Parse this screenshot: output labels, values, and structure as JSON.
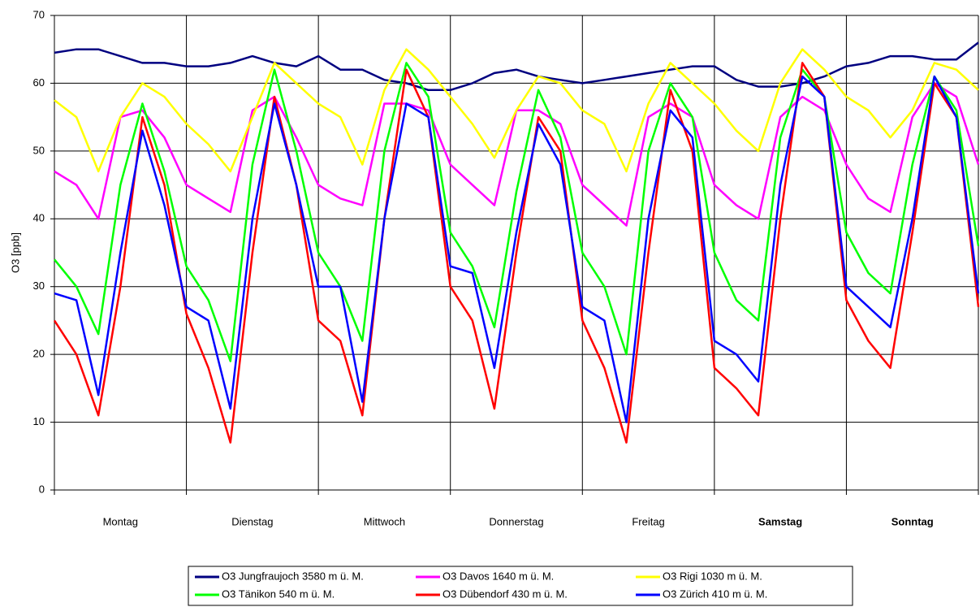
{
  "chart_data": {
    "type": "line",
    "y_label": "O3 [ppb]",
    "categories": [
      "Montag",
      "Dienstag",
      "Mittwoch",
      "Donnerstag",
      "Freitag",
      "Samstag",
      "Sonntag"
    ],
    "bold": [
      false,
      false,
      false,
      false,
      false,
      true,
      true
    ],
    "x": [
      0,
      4,
      8,
      12,
      16,
      20,
      24,
      28,
      32,
      36,
      40,
      44,
      48,
      52,
      56,
      60,
      64,
      68,
      72,
      76,
      80,
      84,
      88,
      92,
      96,
      100,
      104,
      108,
      112,
      116,
      120,
      124,
      128,
      132,
      136,
      140,
      144,
      148,
      152,
      156,
      160,
      164,
      168
    ],
    "xlim": [
      0,
      168
    ],
    "ylim": [
      0,
      70
    ],
    "yticks": [
      0,
      10,
      20,
      30,
      40,
      50,
      60,
      70
    ],
    "grid": true,
    "legend": "bottom",
    "series": [
      {
        "name": "O3 Jungfraujoch 3580 m ü. M.",
        "color": "#000080",
        "values": [
          64.5,
          65,
          65,
          64,
          63,
          63,
          62.5,
          62.5,
          63,
          64,
          63,
          62.5,
          64,
          62,
          62,
          60.5,
          60,
          59,
          59,
          60,
          61.5,
          62,
          61,
          60.5,
          60,
          60.5,
          61,
          61.5,
          62,
          62.5,
          62.5,
          60.5,
          59.5,
          59.5,
          60,
          61,
          62.5,
          63,
          64,
          64,
          63.5,
          63.5,
          66
        ]
      },
      {
        "name": "O3 Davos 1640 m ü. M.",
        "color": "#ff00ff",
        "values": [
          47,
          45,
          40,
          55,
          56,
          52,
          45,
          43,
          41,
          56,
          58,
          52,
          45,
          43,
          42,
          57,
          57,
          56,
          48,
          45,
          42,
          56,
          56,
          54,
          45,
          42,
          39,
          55,
          57,
          55,
          45,
          42,
          40,
          55,
          58,
          56,
          48,
          43,
          41,
          55,
          60,
          58,
          48
        ]
      },
      {
        "name": "O3 Rigi 1030 m ü. M.",
        "color": "#ffff00",
        "values": [
          57.5,
          55,
          47,
          55,
          60,
          58,
          54,
          51,
          47,
          55,
          63,
          60,
          57,
          55,
          48,
          59,
          65,
          62,
          58,
          54,
          49,
          56,
          61,
          60,
          56,
          54,
          47,
          57,
          63,
          60,
          57,
          53,
          50,
          60,
          65,
          62,
          58,
          56,
          52,
          56,
          63,
          62,
          59
        ]
      },
      {
        "name": "O3 Tänikon 540 m ü. M.",
        "color": "#00ff00",
        "values": [
          34,
          30,
          23,
          45,
          57,
          47,
          33,
          28,
          19,
          48,
          62,
          50,
          35,
          30,
          22,
          50,
          63,
          58,
          38,
          33,
          24,
          44,
          59,
          52,
          35,
          30,
          20,
          50,
          60,
          55,
          35,
          28,
          25,
          52,
          62,
          58,
          38,
          32,
          29,
          48,
          61,
          56,
          36
        ]
      },
      {
        "name": "O3 Dübendorf 430 m ü. M.",
        "color": "#ff0000",
        "values": [
          25,
          20,
          11,
          30,
          55,
          45,
          26,
          18,
          7,
          35,
          58,
          45,
          25,
          22,
          11,
          40,
          62,
          55,
          30,
          25,
          12,
          35,
          55,
          50,
          25,
          18,
          7,
          35,
          59,
          50,
          18,
          15,
          11,
          40,
          63,
          58,
          28,
          22,
          18,
          38,
          60,
          55,
          27
        ]
      },
      {
        "name": "O3 Zürich 410 m ü. M.",
        "color": "#0000ff",
        "values": [
          29,
          28,
          14,
          35,
          53,
          42,
          27,
          25,
          12,
          40,
          57,
          45,
          30,
          30,
          13,
          40,
          57,
          55,
          33,
          32,
          18,
          38,
          54,
          48,
          27,
          25,
          10,
          40,
          56,
          52,
          22,
          20,
          16,
          45,
          61,
          58,
          30,
          27,
          24,
          40,
          61,
          55,
          29
        ]
      }
    ]
  }
}
